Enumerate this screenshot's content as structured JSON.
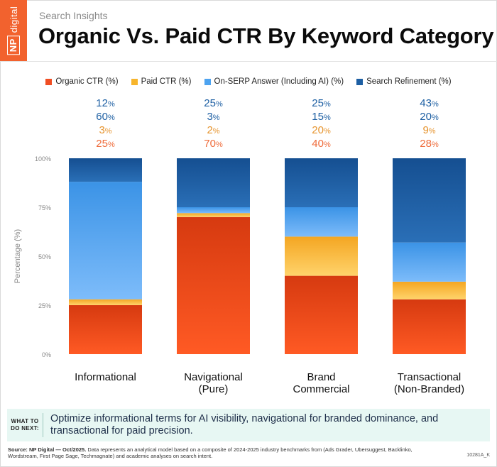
{
  "brand": {
    "line1": "NP",
    "line2": "digital"
  },
  "kicker": "Search Insights",
  "title": "Organic Vs. Paid CTR By Keyword Category",
  "legend": [
    {
      "label": "Organic CTR (%)",
      "color": "#f04e23"
    },
    {
      "label": "Paid CTR (%)",
      "color": "#f7b52c"
    },
    {
      "label": "On-SERP Answer (Including AI) (%)",
      "color": "#4da3f0"
    },
    {
      "label": "Search Refinement (%)",
      "color": "#1d5fa3"
    }
  ],
  "chart_data": {
    "type": "bar",
    "stacked": true,
    "categories": [
      [
        "Informational"
      ],
      [
        "Navigational",
        "(Pure)"
      ],
      [
        "Brand",
        "Commercial"
      ],
      [
        "Transactional",
        "(Non-Branded)"
      ]
    ],
    "series": [
      {
        "name": "Organic CTR (%)",
        "values": [
          25,
          70,
          40,
          28
        ],
        "color": "#f04e23",
        "label_color": "#ef6b3a"
      },
      {
        "name": "Paid CTR (%)",
        "values": [
          3,
          2,
          20,
          9
        ],
        "color": "#f7b52c",
        "label_color": "#e69530"
      },
      {
        "name": "On-SERP Answer (Including AI) (%)",
        "values": [
          60,
          3,
          15,
          20
        ],
        "color": "#4da3f0",
        "label_color": "#1d5fa3"
      },
      {
        "name": "Search Refinement (%)",
        "values": [
          12,
          25,
          25,
          43
        ],
        "color": "#1d5fa3",
        "label_color": "#1d5fa3"
      }
    ],
    "ylabel": "Percentage (%)",
    "ylim": [
      0,
      100
    ],
    "yticks": [
      "0%",
      "25%",
      "50%",
      "75%",
      "100%"
    ],
    "ytick_values": [
      0,
      25,
      50,
      75,
      100
    ],
    "value_suffix": "%",
    "grid": false
  },
  "next": {
    "label_lines": [
      "WHAT TO",
      "DO NEXT:"
    ],
    "text": "Optimize informational terms for AI visibility, navigational for branded dominance, and transactional for paid precision."
  },
  "footer": {
    "source_label": "Source: NP Digital — Oct/2025.",
    "source_text": "Data represents an analytical model based on a composite of 2024-2025 industry benchmarks from (Ads Grader, Ubersuggest, Backlinko, Wordstream, First Page Sage, Techmagnate) and academic analyses on search intent.",
    "code": "10281A_K"
  }
}
